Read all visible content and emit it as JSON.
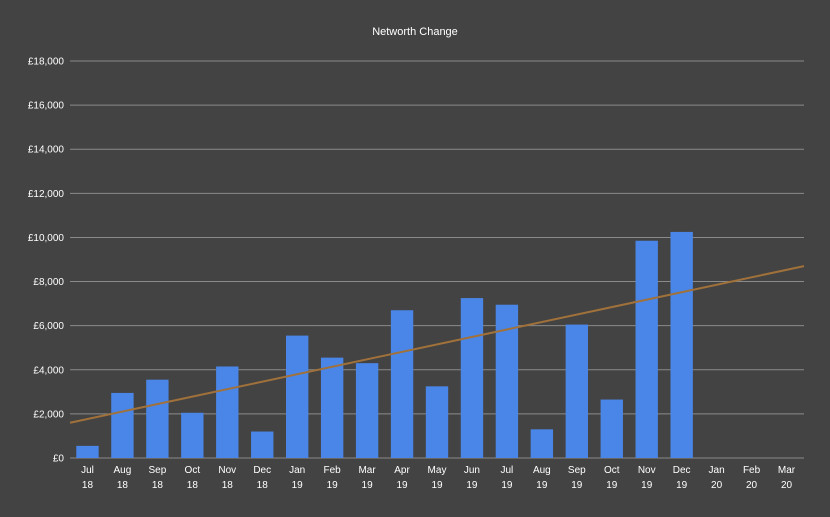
{
  "chart_data": {
    "type": "bar",
    "title": "Networth Change",
    "xlabel": "",
    "ylabel": "",
    "ylim": [
      0,
      18000
    ],
    "yticks": [
      "£0",
      "£2,000",
      "£4,000",
      "£6,000",
      "£8,000",
      "£10,000",
      "£12,000",
      "£14,000",
      "£16,000",
      "£18,000"
    ],
    "ytick_values": [
      0,
      2000,
      4000,
      6000,
      8000,
      10000,
      12000,
      14000,
      16000,
      18000
    ],
    "categories": [
      [
        "Jul",
        "18"
      ],
      [
        "Aug",
        "18"
      ],
      [
        "Sep",
        "18"
      ],
      [
        "Oct",
        "18"
      ],
      [
        "Nov",
        "18"
      ],
      [
        "Dec",
        "18"
      ],
      [
        "Jan",
        "19"
      ],
      [
        "Feb",
        "19"
      ],
      [
        "Mar",
        "19"
      ],
      [
        "Apr",
        "19"
      ],
      [
        "May",
        "19"
      ],
      [
        "Jun",
        "19"
      ],
      [
        "Jul",
        "19"
      ],
      [
        "Aug",
        "19"
      ],
      [
        "Sep",
        "19"
      ],
      [
        "Oct",
        "19"
      ],
      [
        "Nov",
        "19"
      ],
      [
        "Dec",
        "19"
      ],
      [
        "Jan",
        "20"
      ],
      [
        "Feb",
        "20"
      ],
      [
        "Mar",
        "20"
      ]
    ],
    "values": [
      550,
      2950,
      3550,
      2050,
      4150,
      1200,
      5550,
      4550,
      4300,
      6700,
      3250,
      7250,
      6950,
      1300,
      6050,
      2650,
      9850,
      10250,
      null,
      null,
      null
    ],
    "trendline": {
      "type": "linear",
      "start": 1600,
      "end": 8700
    },
    "grid": true,
    "legend": "none",
    "colors": {
      "bar": "#4a86e8",
      "trend": "#a0713a",
      "background": "#434343",
      "grid": "#8a8a8a"
    }
  }
}
